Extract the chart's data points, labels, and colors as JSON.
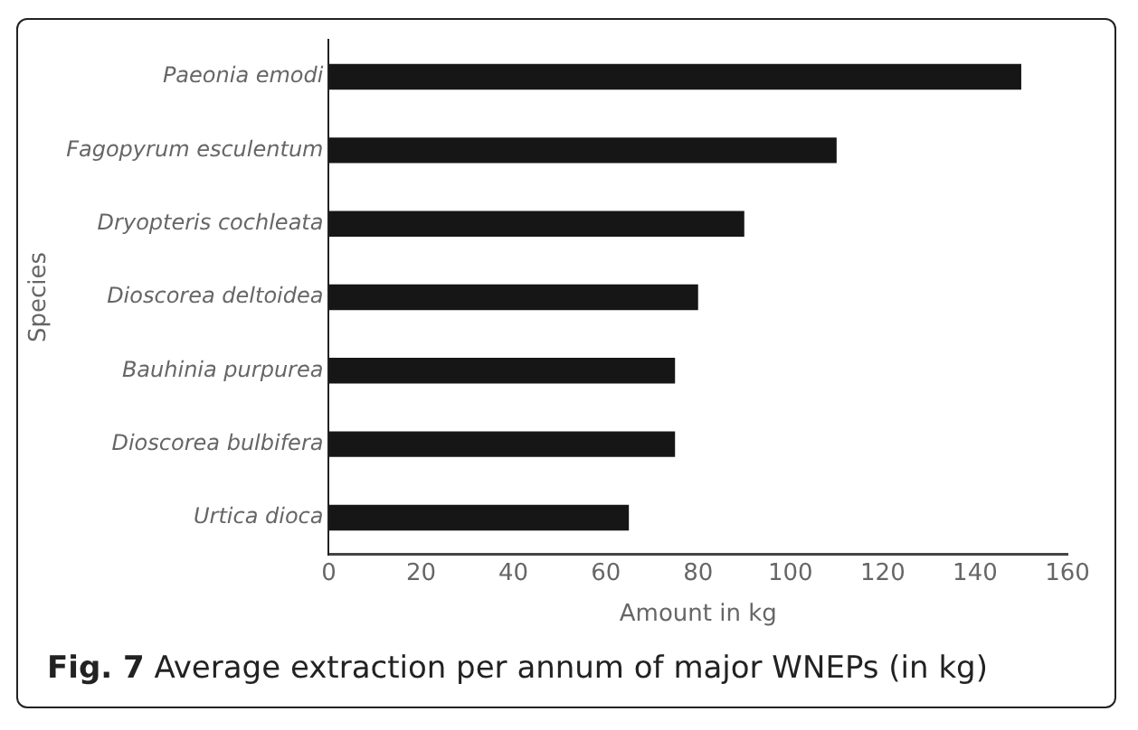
{
  "chart_data": {
    "type": "bar",
    "orientation": "horizontal",
    "xlabel": "Amount in kg",
    "ylabel": "Species",
    "categories": [
      "Paeonia emodi",
      "Fagopyrum esculentum",
      "Dryopteris cochleata",
      "Dioscorea deltoidea",
      "Bauhinia purpurea",
      "Dioscorea bulbifera",
      "Urtica dioca"
    ],
    "values": [
      150,
      110,
      90,
      80,
      75,
      75,
      65
    ],
    "color": "#161616",
    "xlim": [
      0,
      160
    ],
    "xticks": [
      0,
      20,
      40,
      60,
      80,
      100,
      120,
      140,
      160
    ],
    "grid": false,
    "legend": false,
    "annotations": [
      "Fig. 7 Average extraction per annum of major WNEPs (in kg)"
    ]
  }
}
